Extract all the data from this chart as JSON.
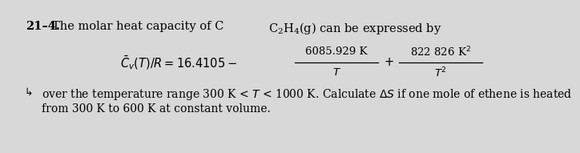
{
  "background_color": "#d8d8d8",
  "bold_prefix": "21–4.",
  "title_rest": "  The molar heat capacity of C",
  "chem_formula": "$\\mathrm{C_2H_4}$(g) can be expressed by",
  "eq_left": "$\\bar{C}_v(T)/R = 16.4105 -$",
  "frac_num1": "6085.929 K",
  "frac_den1": "$T$",
  "plus_sign": "$+$",
  "frac_num2": "822 826 K$^2$",
  "frac_den2": "$T^2$",
  "body_line1": "over the temperature range 300 K < $T$ < 1000 K. Calculate $\\Delta S$ if one mole of ethene is heated",
  "body_line2": "from 300 K to 600 K at constant volume.",
  "arrow": "↳",
  "fs_title": 10.5,
  "fs_eq": 10.5,
  "fs_body": 10.0
}
